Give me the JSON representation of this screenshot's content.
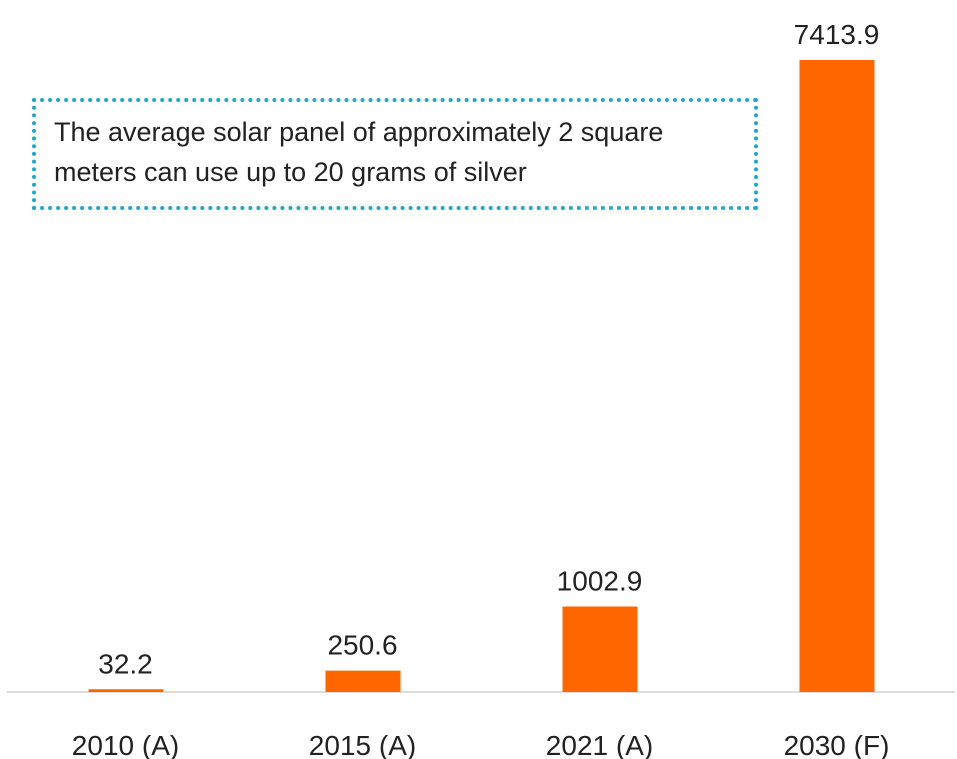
{
  "chart_data": {
    "type": "bar",
    "categories": [
      "2010 (A)",
      "2015 (A)",
      "2021 (A)",
      "2030 (F)"
    ],
    "values": [
      32.2,
      250.6,
      1002.9,
      7413.9
    ],
    "color": "#ff6600",
    "annotation": "The average solar panel of approximately 2 square meters can use up to 20 grams of silver"
  }
}
